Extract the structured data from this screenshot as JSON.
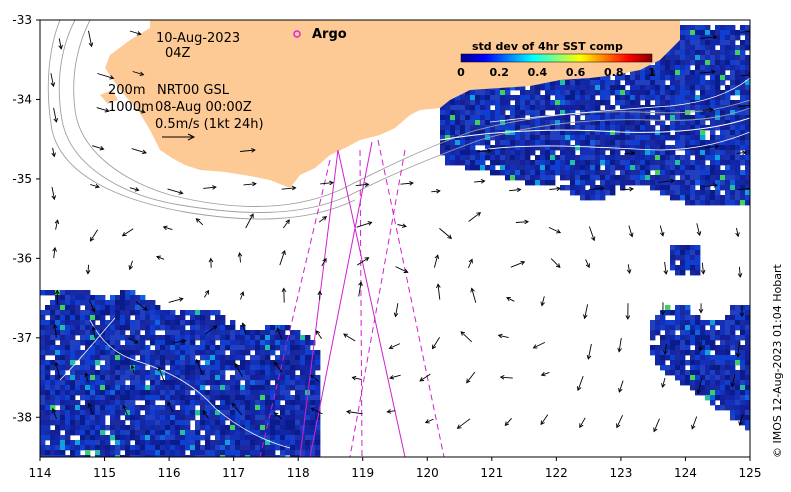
{
  "chart_data": {
    "type": "map",
    "x_ticks": [
      114,
      115,
      116,
      117,
      118,
      119,
      120,
      121,
      122,
      123,
      124,
      125
    ],
    "y_ticks": [
      -33,
      -34,
      -35,
      -36,
      -37,
      -38
    ],
    "xlim": [
      114,
      125
    ],
    "ylim": [
      -38.5,
      -33
    ],
    "annotations": {
      "date": "10-Aug-2023",
      "hour": "04Z",
      "depth_200": "200m",
      "source": "NRT00 GSL",
      "depth_1000": "1000m",
      "ref_time": "08-Aug 00:00Z",
      "scale": "0.5m/s (1kt 24h)"
    },
    "legend": {
      "argo_label": "Argo",
      "argo_color": "#e020e0"
    },
    "colorbar": {
      "title": "std dev of 4hr SST comp",
      "ticks": [
        "0",
        "0.2",
        "0.4",
        "0.6",
        "0.8",
        "1"
      ],
      "range": [
        0,
        1
      ]
    },
    "credit": "© IMOS 12-Aug-2023 01:04 Hobart"
  },
  "colors": {
    "land": "#fdc994",
    "sst_low": "#1a2aa0",
    "track": "#d020d0",
    "contour": "#a0a0a0"
  }
}
